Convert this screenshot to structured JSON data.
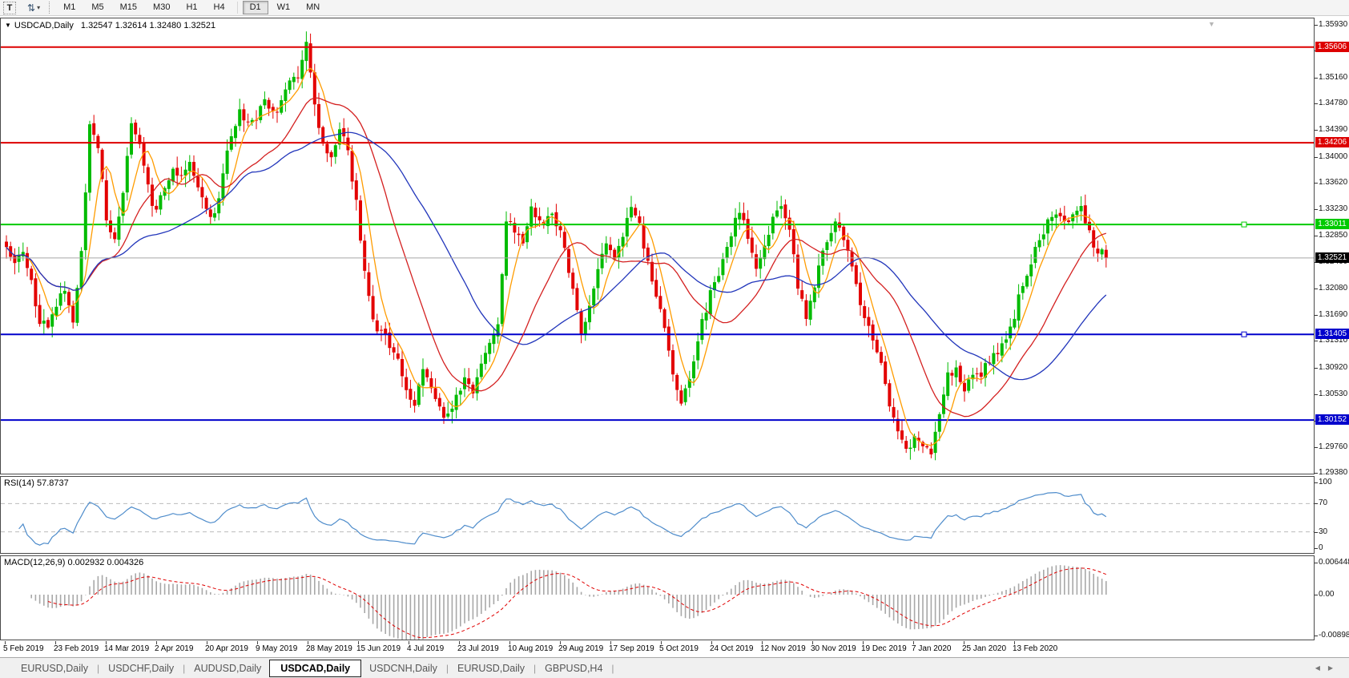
{
  "icons": {
    "text_tool": "T",
    "arrows_tool": "⇅",
    "tool_caret": "▾",
    "symbol_dropdown": "▼",
    "shift_marker": "▼",
    "tab_scroll_left": "◀",
    "tab_scroll_right": "▶"
  },
  "toolbar": {
    "timeframes": [
      "M1",
      "M5",
      "M15",
      "M30",
      "H1",
      "H4",
      "D1",
      "W1",
      "MN"
    ],
    "active_timeframe": "D1"
  },
  "chart": {
    "symbol_label": "USDCAD,Daily",
    "quotes_text": "1.32547 1.32614 1.32480 1.32521",
    "colors": {
      "bull": "#00bb00",
      "bear": "#e30000",
      "ma_fast": "#ff9c00",
      "ma_mid": "#d42020",
      "ma_slow": "#2236bb",
      "level_red": "#dd0000",
      "level_green": "#00ca00",
      "level_blue": "#0000cc",
      "current_line": "#a8a8a8",
      "current_tag_bg": "#000000",
      "rsi_line": "#4e8ccb",
      "rsi_levels": "#bcbcbc",
      "macd_hist": "#a8a8a8",
      "macd_signal": "#e00000"
    },
    "price_axis_labels": [
      "1.35930",
      "1.35550",
      "1.35160",
      "1.34780",
      "1.34390",
      "1.34000",
      "1.33620",
      "1.33230",
      "1.32850",
      "1.32460",
      "1.32080",
      "1.31690",
      "1.31310",
      "1.30920",
      "1.30530",
      "1.30140",
      "1.29760",
      "1.29380"
    ],
    "levels": [
      {
        "price": 1.35606,
        "label": "1.35606",
        "kind": "resistance",
        "color": "#dd0000",
        "handle": false
      },
      {
        "price": 1.34206,
        "label": "1.34206",
        "kind": "resistance",
        "color": "#dd0000",
        "handle": false
      },
      {
        "price": 1.33011,
        "label": "1.33011",
        "kind": "pivot",
        "color": "#00ca00",
        "handle": true
      },
      {
        "price": 1.31405,
        "label": "1.31405",
        "kind": "support",
        "color": "#0000cc",
        "handle": true
      },
      {
        "price": 1.30152,
        "label": "1.30152",
        "kind": "support",
        "color": "#0000cc",
        "handle": false
      }
    ],
    "current_price": {
      "value": 1.32521,
      "label": "1.32521"
    }
  },
  "chart_data": {
    "type": "candlestick",
    "symbol": "USDCAD",
    "timeframe": "Daily",
    "bars": 265,
    "visible_price_range": [
      1.2936,
      1.3603
    ],
    "visible_date_range": [
      "5 Feb 2019",
      "13 Feb 2020"
    ],
    "last_quote": {
      "open": 1.32547,
      "high": 1.32614,
      "low": 1.3248,
      "close": 1.32521
    },
    "moving_averages": [
      {
        "name": "fast",
        "period": 6,
        "color": "#ff9c00"
      },
      {
        "name": "medium",
        "period": 20,
        "color": "#d42020"
      },
      {
        "name": "slow",
        "period": 40,
        "color": "#2236bb"
      }
    ],
    "price_path": [
      [
        0,
        1.3268
      ],
      [
        2,
        1.324
      ],
      [
        4,
        1.3266
      ],
      [
        6,
        1.3212
      ],
      [
        8,
        1.316
      ],
      [
        10,
        1.3148
      ],
      [
        12,
        1.3188
      ],
      [
        14,
        1.321
      ],
      [
        16,
        1.3152
      ],
      [
        18,
        1.3255
      ],
      [
        20,
        1.3445
      ],
      [
        22,
        1.342
      ],
      [
        24,
        1.331
      ],
      [
        26,
        1.3285
      ],
      [
        28,
        1.334
      ],
      [
        30,
        1.345
      ],
      [
        32,
        1.3425
      ],
      [
        34,
        1.3355
      ],
      [
        36,
        1.3315
      ],
      [
        38,
        1.336
      ],
      [
        40,
        1.3384
      ],
      [
        42,
        1.337
      ],
      [
        44,
        1.3395
      ],
      [
        46,
        1.336
      ],
      [
        48,
        1.3322
      ],
      [
        50,
        1.331
      ],
      [
        52,
        1.338
      ],
      [
        54,
        1.343
      ],
      [
        56,
        1.347
      ],
      [
        58,
        1.3445
      ],
      [
        60,
        1.3458
      ],
      [
        62,
        1.349
      ],
      [
        64,
        1.346
      ],
      [
        66,
        1.348
      ],
      [
        68,
        1.3508
      ],
      [
        70,
        1.352
      ],
      [
        72,
        1.3561
      ],
      [
        73,
        1.353
      ],
      [
        74,
        1.348
      ],
      [
        76,
        1.3415
      ],
      [
        78,
        1.34
      ],
      [
        80,
        1.3445
      ],
      [
        82,
        1.341
      ],
      [
        84,
        1.333
      ],
      [
        86,
        1.324
      ],
      [
        88,
        1.3165
      ],
      [
        90,
        1.314
      ],
      [
        92,
        1.3128
      ],
      [
        94,
        1.3105
      ],
      [
        96,
        1.3058
      ],
      [
        98,
        1.3042
      ],
      [
        100,
        1.3095
      ],
      [
        102,
        1.306
      ],
      [
        104,
        1.303
      ],
      [
        106,
        1.3018
      ],
      [
        108,
        1.3048
      ],
      [
        110,
        1.308
      ],
      [
        112,
        1.3055
      ],
      [
        114,
        1.3105
      ],
      [
        116,
        1.3135
      ],
      [
        118,
        1.315
      ],
      [
        120,
        1.331
      ],
      [
        122,
        1.329
      ],
      [
        124,
        1.3268
      ],
      [
        126,
        1.333
      ],
      [
        128,
        1.33
      ],
      [
        130,
        1.3315
      ],
      [
        132,
        1.3305
      ],
      [
        134,
        1.3265
      ],
      [
        136,
        1.321
      ],
      [
        138,
        1.3145
      ],
      [
        140,
        1.318
      ],
      [
        142,
        1.3235
      ],
      [
        144,
        1.328
      ],
      [
        146,
        1.3255
      ],
      [
        148,
        1.329
      ],
      [
        150,
        1.333
      ],
      [
        152,
        1.33
      ],
      [
        154,
        1.3245
      ],
      [
        156,
        1.32
      ],
      [
        158,
        1.3145
      ],
      [
        160,
        1.3085
      ],
      [
        162,
        1.3038
      ],
      [
        164,
        1.308
      ],
      [
        166,
        1.3135
      ],
      [
        168,
        1.318
      ],
      [
        170,
        1.3215
      ],
      [
        172,
        1.325
      ],
      [
        174,
        1.329
      ],
      [
        176,
        1.332
      ],
      [
        178,
        1.328
      ],
      [
        180,
        1.3235
      ],
      [
        182,
        1.327
      ],
      [
        184,
        1.331
      ],
      [
        186,
        1.333
      ],
      [
        188,
        1.329
      ],
      [
        190,
        1.321
      ],
      [
        192,
        1.317
      ],
      [
        194,
        1.3215
      ],
      [
        196,
        1.3265
      ],
      [
        198,
        1.3295
      ],
      [
        200,
        1.33
      ],
      [
        202,
        1.326
      ],
      [
        204,
        1.3215
      ],
      [
        206,
        1.316
      ],
      [
        208,
        1.313
      ],
      [
        210,
        1.3095
      ],
      [
        212,
        1.303
      ],
      [
        214,
        1.2995
      ],
      [
        216,
        1.2972
      ],
      [
        218,
        1.2992
      ],
      [
        220,
        1.298
      ],
      [
        222,
        1.2968
      ],
      [
        224,
        1.303
      ],
      [
        226,
        1.308
      ],
      [
        228,
        1.3095
      ],
      [
        230,
        1.306
      ],
      [
        232,
        1.3075
      ],
      [
        234,
        1.3085
      ],
      [
        236,
        1.3102
      ],
      [
        238,
        1.3118
      ],
      [
        240,
        1.3135
      ],
      [
        242,
        1.317
      ],
      [
        244,
        1.3215
      ],
      [
        246,
        1.325
      ],
      [
        248,
        1.328
      ],
      [
        250,
        1.3305
      ],
      [
        252,
        1.332
      ],
      [
        254,
        1.3298
      ],
      [
        256,
        1.3315
      ],
      [
        258,
        1.333
      ],
      [
        260,
        1.3288
      ],
      [
        262,
        1.3262
      ],
      [
        264,
        1.3252
      ]
    ]
  },
  "rsi_panel": {
    "label": "RSI(14) 57.8737",
    "period": 14,
    "value": 57.8737,
    "axis_labels": [
      "100",
      "70",
      "30",
      "0"
    ],
    "upper_level": 70,
    "lower_level": 30
  },
  "macd_panel": {
    "label": "MACD(12,26,9) 0.002932 0.004326",
    "fast": 12,
    "slow": 26,
    "signal_period": 9,
    "macd_value": 0.002932,
    "signal_value": 0.004326,
    "axis_labels": [
      "0.006448",
      "0.00",
      "-0.008982"
    ],
    "axis_values": [
      0.006448,
      0.0,
      -0.008982
    ]
  },
  "time_axis": {
    "labels": [
      "5 Feb 2019",
      "23 Feb 2019",
      "14 Mar 2019",
      "2 Apr 2019",
      "20 Apr 2019",
      "9 May 2019",
      "28 May 2019",
      "15 Jun 2019",
      "4 Jul 2019",
      "23 Jul 2019",
      "10 Aug 2019",
      "29 Aug 2019",
      "17 Sep 2019",
      "5 Oct 2019",
      "24 Oct 2019",
      "12 Nov 2019",
      "30 Nov 2019",
      "19 Dec 2019",
      "7 Jan 2020",
      "25 Jan 2020",
      "13 Feb 2020"
    ]
  },
  "tabs": {
    "items": [
      "EURUSD,Daily",
      "USDCHF,Daily",
      "AUDUSD,Daily",
      "USDCAD,Daily",
      "USDCNH,Daily",
      "EURUSD,Daily",
      "GBPUSD,H4"
    ],
    "active_index": 3
  }
}
